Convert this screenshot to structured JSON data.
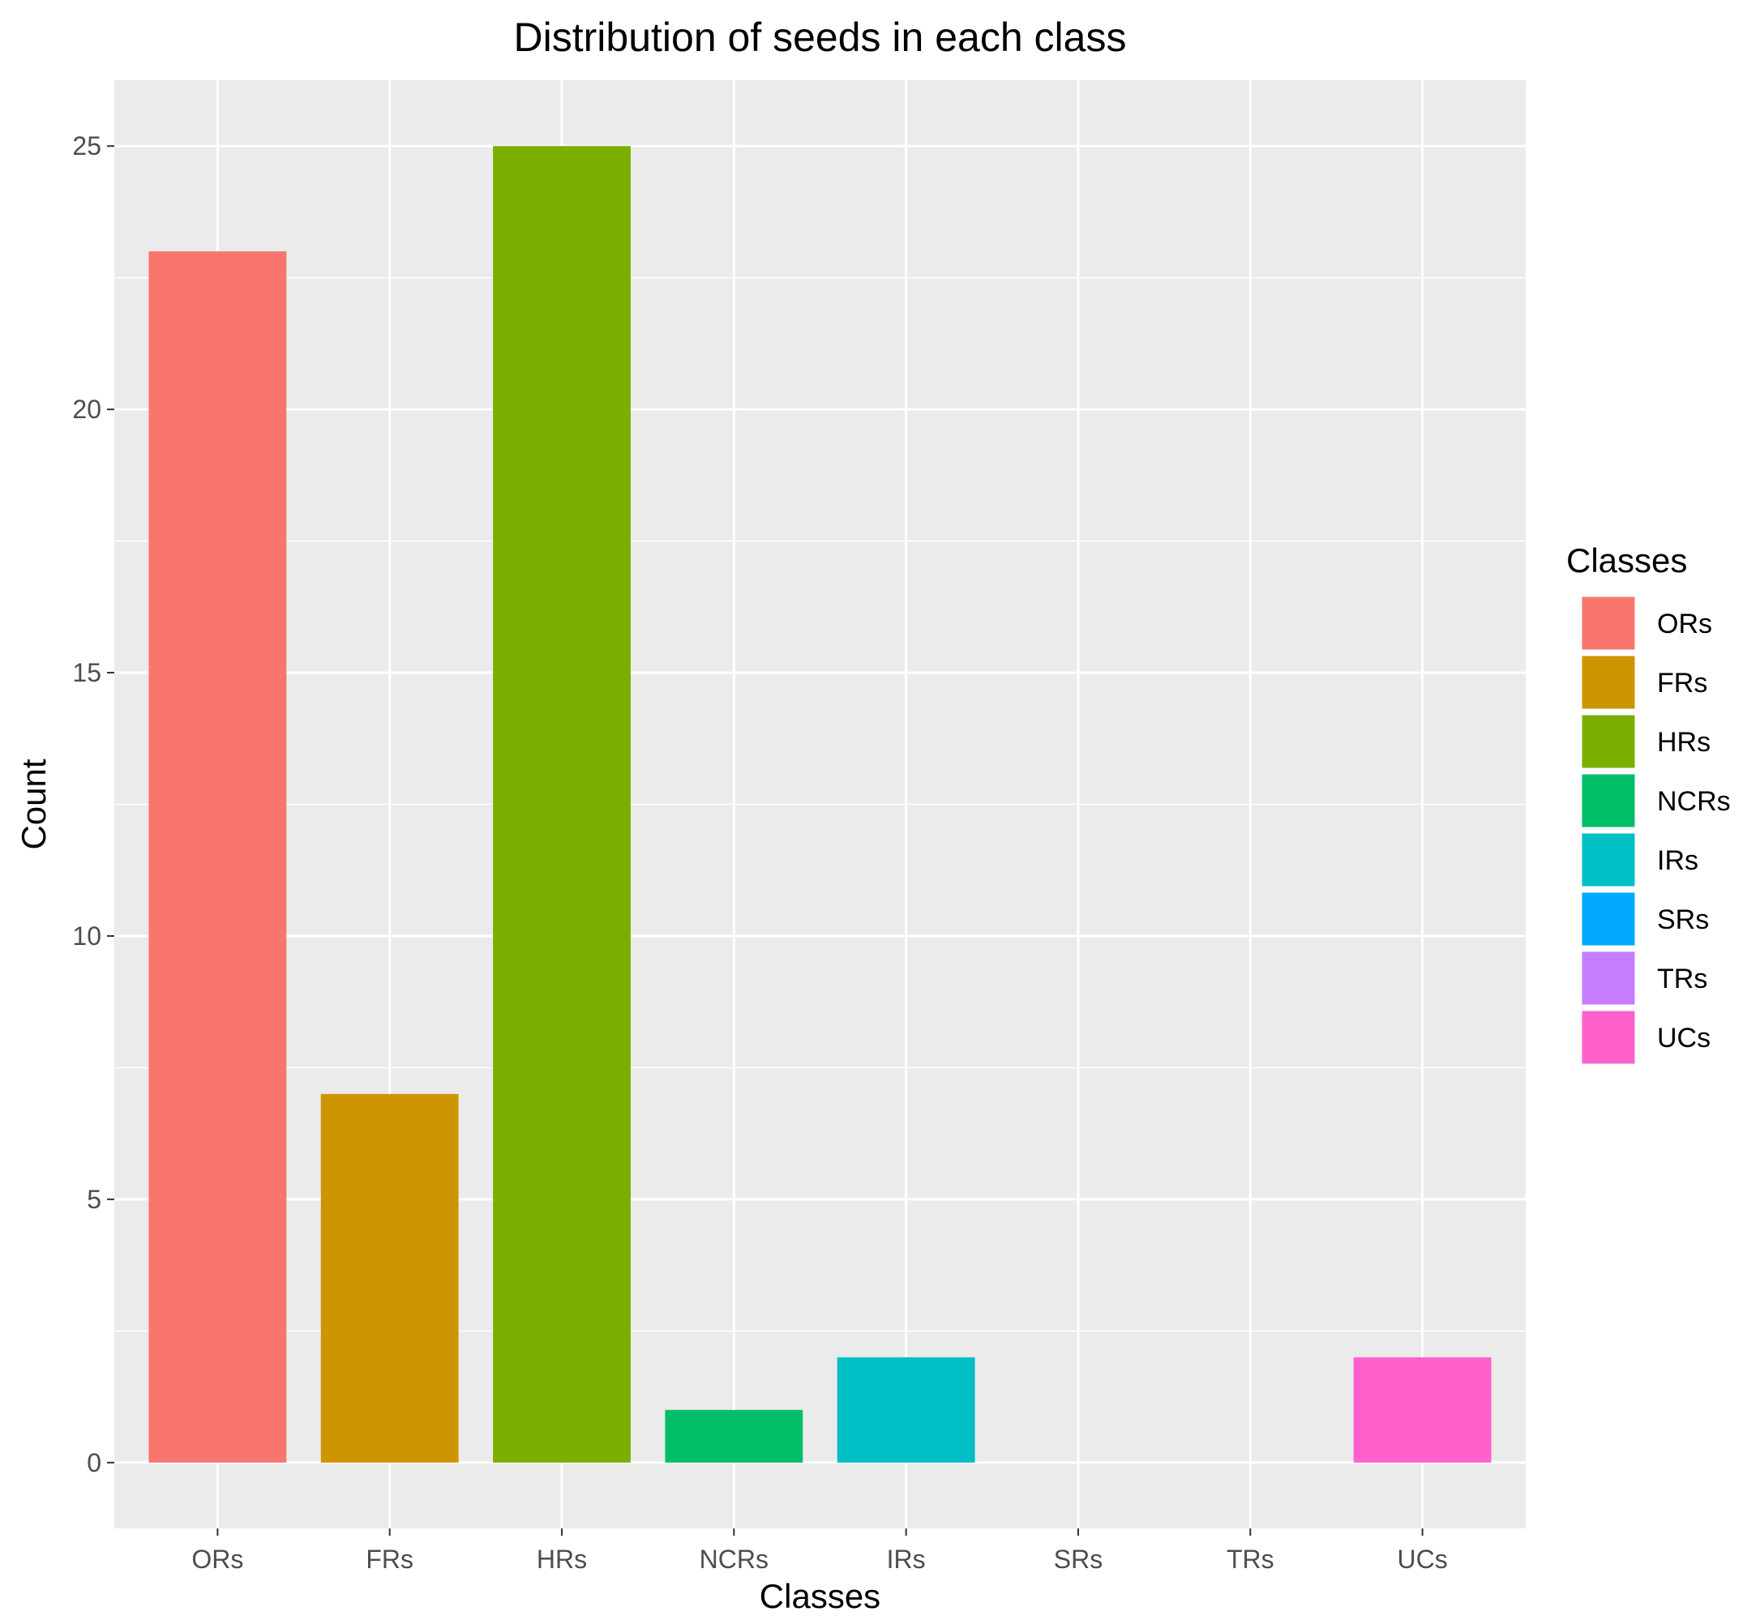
{
  "chart_data": {
    "type": "bar",
    "title": "Distribution of seeds in each class",
    "xlabel": "Classes",
    "ylabel": "Count",
    "categories": [
      "ORs",
      "FRs",
      "HRs",
      "NCRs",
      "IRs",
      "SRs",
      "TRs",
      "UCs"
    ],
    "values": [
      23,
      7,
      25,
      1,
      2,
      0,
      0,
      2
    ],
    "colors": [
      "#F8766D",
      "#CD9600",
      "#7CAE00",
      "#00BE67",
      "#00BFC4",
      "#00A9FF",
      "#C77CFF",
      "#FF61CC"
    ],
    "ylim": [
      -1.25,
      26.25
    ],
    "yticks": [
      0,
      5,
      10,
      15,
      20,
      25
    ],
    "grid": true,
    "panel_background": "#EBEBEB",
    "grid_color": "#FFFFFF",
    "legend": {
      "title": "Classes",
      "position": "right",
      "entries": [
        "ORs",
        "FRs",
        "HRs",
        "NCRs",
        "IRs",
        "SRs",
        "TRs",
        "UCs"
      ]
    }
  }
}
